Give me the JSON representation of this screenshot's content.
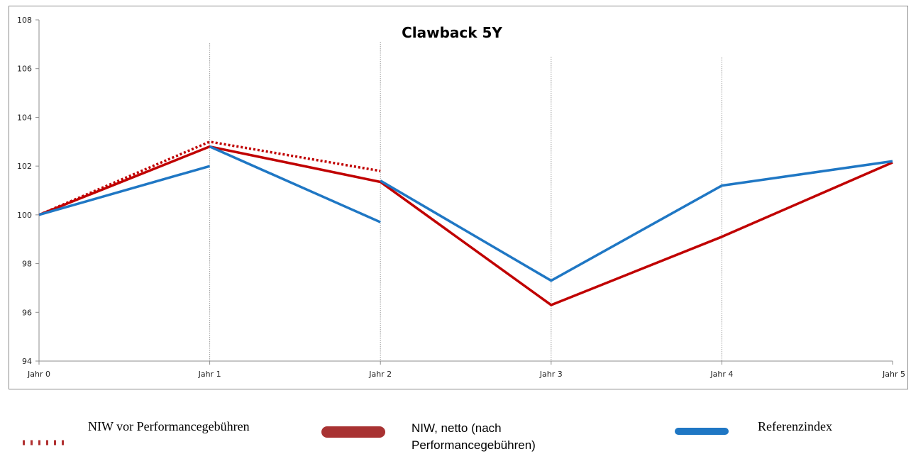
{
  "chart_data": {
    "type": "line",
    "title": "Clawback 5Y",
    "categories": [
      "Jahr 0",
      "Jahr 1",
      "Jahr 2",
      "Jahr 3",
      "Jahr 4",
      "Jahr 5"
    ],
    "ylim": [
      94,
      108
    ],
    "yticks": [
      "94",
      "96",
      "98",
      "100",
      "102",
      "104",
      "106",
      "108"
    ],
    "grid": "vertical dotted lines at Jahr 1 to Jahr 4",
    "legend_position": "bottom",
    "series": [
      {
        "name": "NIW vor Performancegebühren",
        "style": "dotted",
        "color": "#c00000",
        "points": [
          [
            0,
            100.0
          ],
          [
            1,
            103.0
          ],
          [
            2,
            101.8
          ]
        ]
      },
      {
        "name": "NIW, netto (nach Performancegebühren)",
        "style": "solid",
        "color": "#c00000",
        "points": [
          [
            0,
            100.0
          ],
          [
            1,
            102.8
          ],
          [
            2,
            101.35
          ],
          [
            3,
            96.3
          ],
          [
            4,
            99.1
          ],
          [
            5,
            102.15
          ]
        ]
      },
      {
        "name": "Referenzindex",
        "style": "solid",
        "color": "#1f77c4",
        "segments": [
          [
            [
              0,
              100.0
            ],
            [
              1,
              102.0
            ]
          ],
          [
            [
              1,
              102.8
            ],
            [
              2,
              99.7
            ]
          ],
          [
            [
              2,
              101.4
            ],
            [
              3,
              97.3
            ],
            [
              4,
              101.2
            ],
            [
              5,
              102.2
            ]
          ]
        ]
      }
    ]
  },
  "legend": {
    "items": [
      {
        "label": "NIW vor Performancegebühren"
      },
      {
        "label_line1": "NIW, netto (nach",
        "label_line2": "Performancegebühren)"
      },
      {
        "label": "Referenzindex"
      }
    ]
  }
}
